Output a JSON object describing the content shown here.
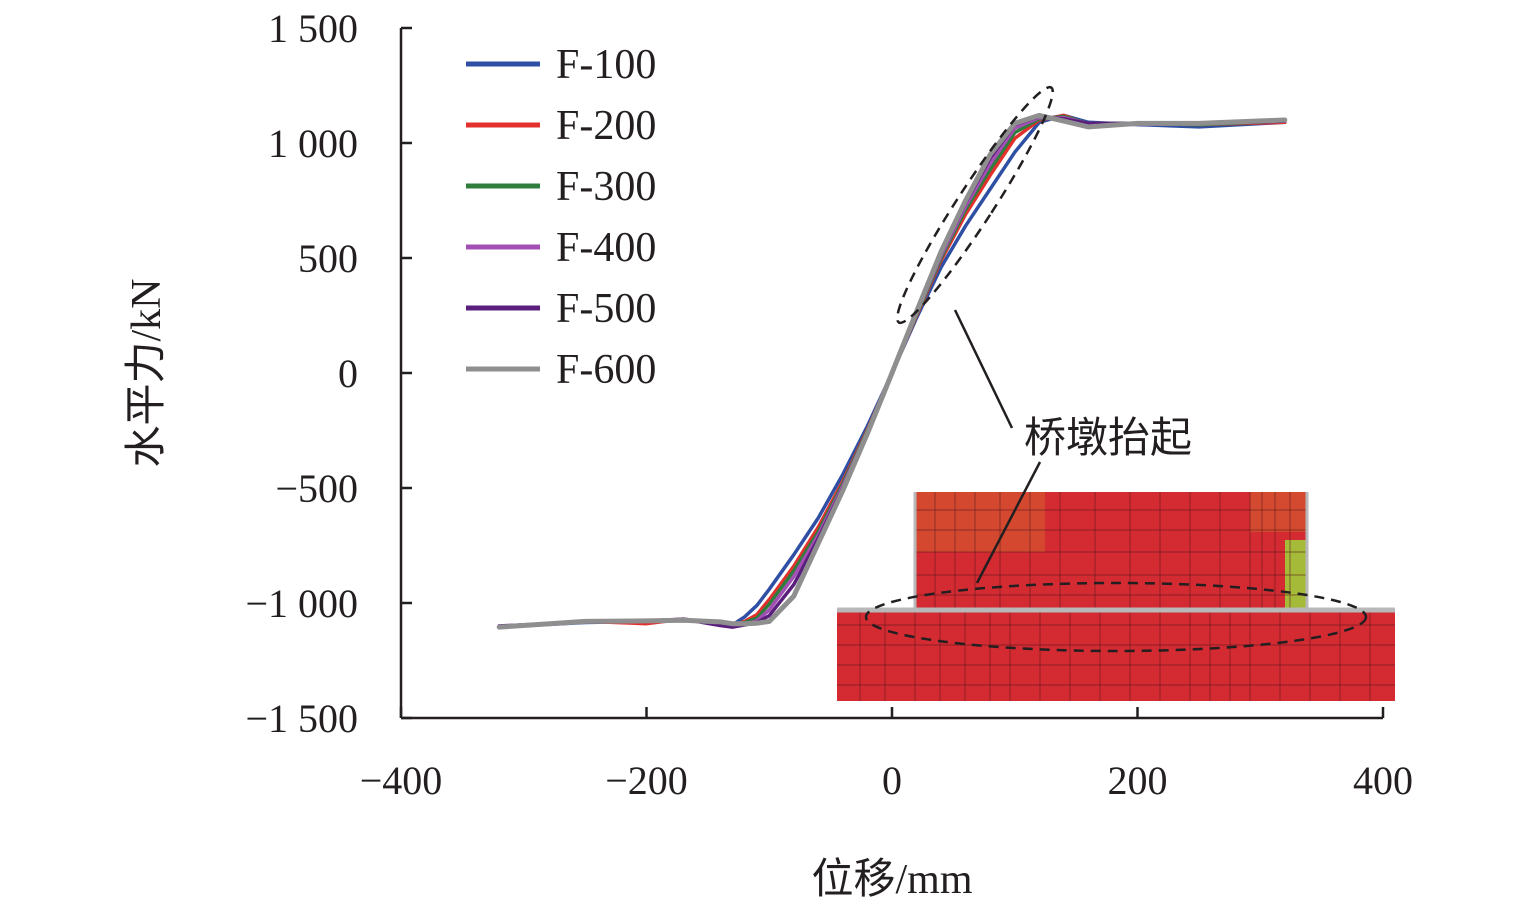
{
  "chart_data": {
    "type": "line",
    "title": "",
    "xlabel": "位移/mm",
    "ylabel": "水平力/kN",
    "xlim": [
      -400,
      400
    ],
    "ylim": [
      -1500,
      1500
    ],
    "xticks": [
      -400,
      -200,
      0,
      200,
      400
    ],
    "xtick_labels": [
      "−400",
      "−200",
      "0",
      "200",
      "400"
    ],
    "yticks": [
      1500,
      1000,
      500,
      0,
      -500,
      -1000,
      -1500
    ],
    "ytick_labels": [
      "1 500",
      "1 000",
      "500",
      "0",
      "−500",
      "−1 000",
      "−1 500"
    ],
    "grid": false,
    "legend_position": "top-left",
    "annotation": "桥墩抬起",
    "x": [
      -320,
      -250,
      -200,
      -170,
      -140,
      -130,
      -120,
      -110,
      -100,
      -80,
      -60,
      -40,
      -20,
      0,
      20,
      40,
      60,
      80,
      100,
      120,
      140,
      160,
      200,
      250,
      320
    ],
    "series": [
      {
        "name": "F-100",
        "color": "#2e4fa3",
        "values": [
          -1105,
          -1085,
          -1080,
          -1075,
          -1085,
          -1095,
          -1060,
          -1010,
          -940,
          -790,
          -630,
          -440,
          -230,
          0,
          240,
          460,
          640,
          800,
          960,
          1090,
          1120,
          1090,
          1080,
          1070,
          1090
        ]
      },
      {
        "name": "F-200",
        "color": "#e2302d",
        "values": [
          -1105,
          -1080,
          -1090,
          -1070,
          -1090,
          -1100,
          -1080,
          -1050,
          -985,
          -840,
          -670,
          -470,
          -245,
          0,
          250,
          490,
          690,
          860,
          1020,
          1100,
          1120,
          1080,
          1085,
          1080,
          1090
        ]
      },
      {
        "name": "F-300",
        "color": "#2f7d3d",
        "values": [
          -1105,
          -1082,
          -1078,
          -1072,
          -1088,
          -1098,
          -1085,
          -1065,
          -1005,
          -860,
          -690,
          -480,
          -250,
          0,
          255,
          500,
          710,
          885,
          1045,
          1105,
          1115,
          1085,
          1085,
          1080,
          1095
        ]
      },
      {
        "name": "F-400",
        "color": "#a44fb5",
        "values": [
          -1100,
          -1082,
          -1078,
          -1070,
          -1088,
          -1095,
          -1092,
          -1078,
          -1030,
          -885,
          -705,
          -490,
          -255,
          0,
          260,
          510,
          725,
          910,
          1065,
          1110,
          1110,
          1085,
          1082,
          1085,
          1095
        ]
      },
      {
        "name": "F-500",
        "color": "#5a1f7d",
        "values": [
          -1100,
          -1082,
          -1080,
          -1070,
          -1098,
          -1105,
          -1095,
          -1085,
          -1055,
          -920,
          -720,
          -500,
          -260,
          0,
          265,
          520,
          740,
          935,
          1080,
          1115,
          1105,
          1085,
          1085,
          1085,
          1095
        ]
      },
      {
        "name": "F-600",
        "color": "#8f8f8f",
        "values": [
          -1105,
          -1080,
          -1078,
          -1075,
          -1082,
          -1090,
          -1090,
          -1088,
          -1080,
          -970,
          -740,
          -510,
          -262,
          0,
          268,
          528,
          750,
          950,
          1085,
          1120,
          1095,
          1070,
          1085,
          1085,
          1100
        ]
      }
    ]
  },
  "inset": {
    "mesh_color": "#d42a32",
    "highlight_color": "#9bd43a"
  }
}
